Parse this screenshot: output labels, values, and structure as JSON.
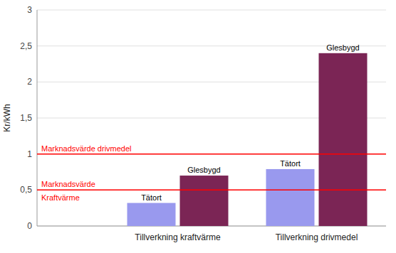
{
  "chart_data": {
    "type": "bar",
    "categories": [
      "Tillverkning kraftvärme",
      "Tillverkning drivmedel"
    ],
    "series": [
      {
        "name": "Tätort",
        "color": "#9999ee",
        "values": [
          0.32,
          0.79
        ]
      },
      {
        "name": "Glesbygd",
        "color": "#7b2555",
        "values": [
          0.7,
          2.4
        ]
      }
    ],
    "y_label": "Kr/kWh",
    "ylim": [
      0,
      3
    ],
    "yticks": [
      0,
      {
        "value": 0.5,
        "label": "0,5"
      },
      1,
      {
        "value": 1.5,
        "label": "1,5"
      },
      2,
      {
        "value": 2.5,
        "label": "2,5"
      },
      3
    ],
    "grid": true,
    "reference_lines": [
      {
        "value": 1.0,
        "label": "Marknadsvärde drivmedel",
        "color": "#ff0000"
      },
      {
        "value": 0.5,
        "label": [
          "Marknadsvärde",
          "Kraftvärme"
        ],
        "color": "#ff0000"
      }
    ]
  }
}
